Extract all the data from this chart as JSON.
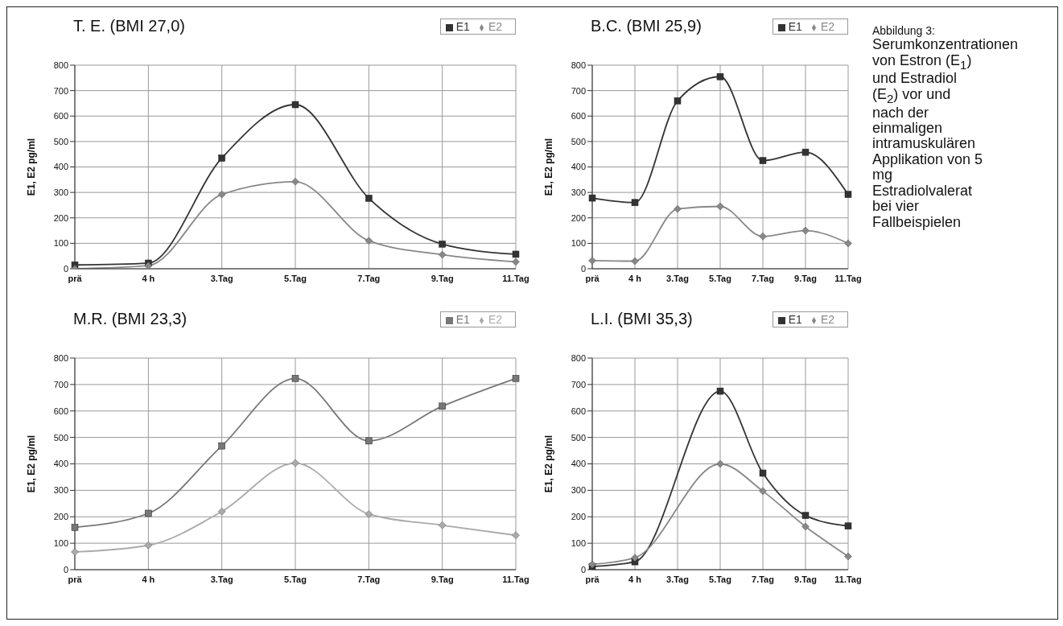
{
  "chart_data": [
    {
      "type": "line",
      "title": "T. E. (BMI 27,0)",
      "ylabel": "E1, E2 pg/ml",
      "categories": [
        "prä",
        "4 h",
        "3.Tag",
        "5.Tag",
        "7.Tag",
        "9.Tag",
        "11.Tag"
      ],
      "ylim": [
        0,
        800
      ],
      "yticks": [
        0,
        100,
        200,
        300,
        400,
        500,
        600,
        700,
        800
      ],
      "grid": true,
      "legend": "top right",
      "series": [
        {
          "name": "E1",
          "color": "#333333",
          "marker": "square",
          "values": [
            15,
            22,
            435,
            645,
            277,
            97,
            57
          ]
        },
        {
          "name": "E2",
          "color": "#888888",
          "marker": "diamond",
          "values": [
            0,
            12,
            292,
            342,
            110,
            55,
            27
          ]
        }
      ]
    },
    {
      "type": "line",
      "title": "B.C. (BMI 25,9)",
      "ylabel": "E1, E2 pg/ml",
      "categories": [
        "prä",
        "4 h",
        "3.Tag",
        "5.Tag",
        "7.Tag",
        "9.Tag",
        "11.Tag"
      ],
      "ylim": [
        0,
        800
      ],
      "yticks": [
        0,
        100,
        200,
        300,
        400,
        500,
        600,
        700,
        800
      ],
      "grid": true,
      "legend": "top right",
      "series": [
        {
          "name": "E1",
          "color": "#333333",
          "marker": "square",
          "values": [
            278,
            260,
            660,
            755,
            425,
            458,
            292
          ]
        },
        {
          "name": "E2",
          "color": "#888888",
          "marker": "diamond",
          "values": [
            32,
            30,
            235,
            245,
            127,
            150,
            100
          ]
        }
      ]
    },
    {
      "type": "line",
      "title": "M.R. (BMI 23,3)",
      "ylabel": "E1, E2 pg/ml",
      "categories": [
        "prä",
        "4 h",
        "3.Tag",
        "5.Tag",
        "7.Tag",
        "9.Tag",
        "11.Tag"
      ],
      "ylim": [
        0,
        800
      ],
      "yticks": [
        0,
        100,
        200,
        300,
        400,
        500,
        600,
        700,
        800
      ],
      "grid": true,
      "legend": "top right",
      "series": [
        {
          "name": "E1",
          "color": "#777777",
          "marker": "square",
          "values": [
            160,
            213,
            468,
            723,
            487,
            618,
            723
          ]
        },
        {
          "name": "E2",
          "color": "#aaaaaa",
          "marker": "diamond",
          "values": [
            67,
            92,
            220,
            403,
            210,
            168,
            130
          ]
        }
      ]
    },
    {
      "type": "line",
      "title": "L.I. (BMI 35,3)",
      "ylabel": "E1, E2 pg/ml",
      "categories": [
        "prä",
        "4 h",
        "3.Tag",
        "5.Tag",
        "7.Tag",
        "9.Tag",
        "11.Tag"
      ],
      "ylim": [
        0,
        800
      ],
      "yticks": [
        0,
        100,
        200,
        300,
        400,
        500,
        600,
        700,
        800
      ],
      "grid": true,
      "legend": "top right",
      "series": [
        {
          "name": "E1",
          "color": "#333333",
          "marker": "square",
          "values": [
            12,
            30,
            null,
            675,
            365,
            205,
            165
          ]
        },
        {
          "name": "E2",
          "color": "#888888",
          "marker": "diamond",
          "values": [
            20,
            45,
            null,
            400,
            297,
            163,
            50
          ]
        }
      ]
    },
    {
      "type": "other",
      "annotations": [
        "Abbildung 3:",
        "Serumkonzentrationen von Estron (E$_{1}$) und Estradiol (E$_{2}$) vor und nach der einmaligen intramuskulären Applikation von 5 mg Estradiolvalerat bei vier Fallbeispielen"
      ]
    }
  ]
}
